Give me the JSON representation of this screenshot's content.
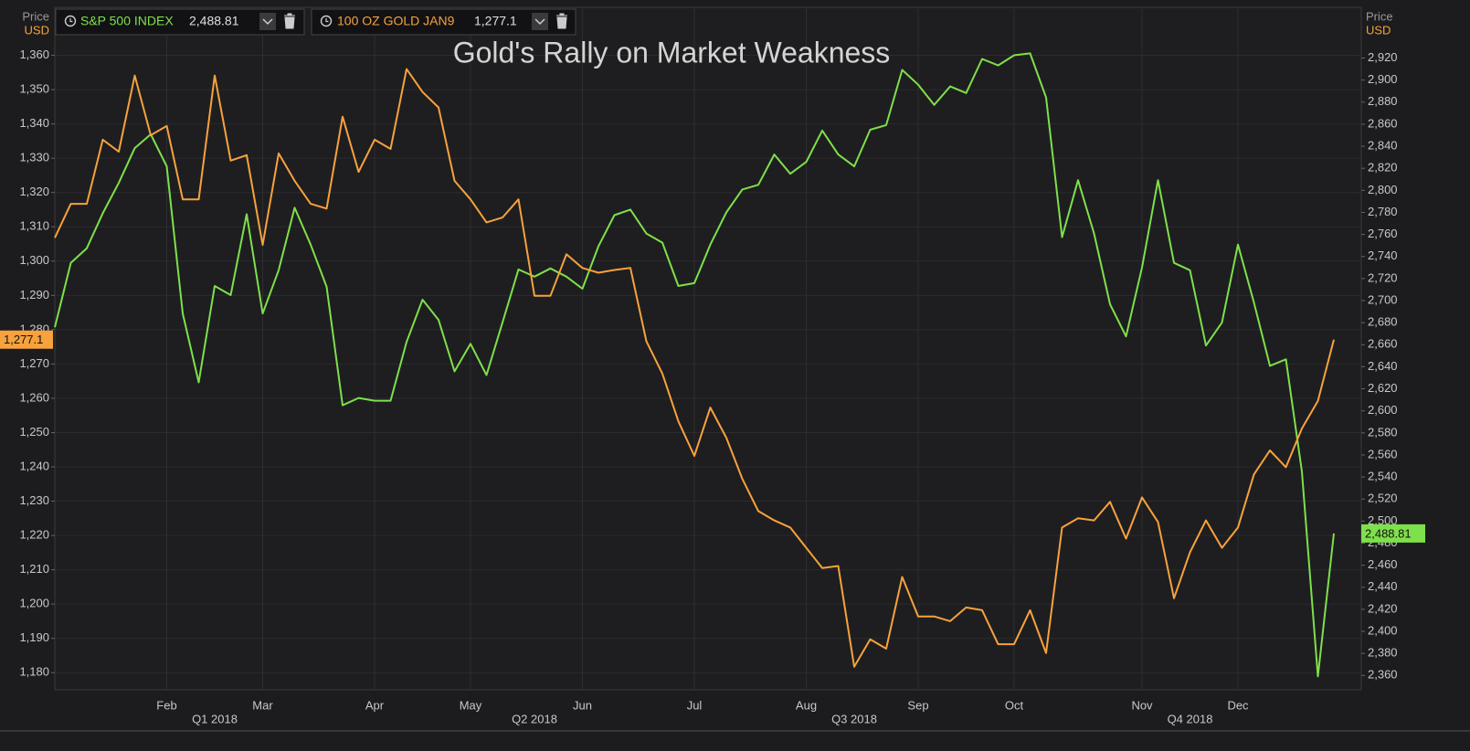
{
  "chart_data": {
    "type": "line",
    "title": "Gold's Rally on Market Weakness",
    "ylabel": "Price",
    "yunit": "USD",
    "y2label": "Price",
    "y2unit": "USD",
    "categories": [
      null,
      null,
      null,
      null,
      null,
      null,
      null,
      "Feb",
      null,
      null,
      null,
      null,
      null,
      "Mar",
      null,
      null,
      null,
      null,
      null,
      null,
      "Apr",
      null,
      null,
      null,
      null,
      null,
      "May",
      null,
      null,
      null,
      null,
      null,
      null,
      "Jun",
      null,
      null,
      null,
      null,
      null,
      null,
      "Jul",
      null,
      null,
      null,
      null,
      null,
      null,
      "Aug",
      null,
      null,
      null,
      null,
      null,
      null,
      "Sep",
      null,
      null,
      null,
      null,
      null,
      "Oct",
      null,
      null,
      null,
      null,
      null,
      null,
      null,
      "Nov",
      null,
      null,
      null,
      null,
      null,
      "Dec",
      null,
      null,
      null,
      null,
      null,
      null
    ],
    "quarter_categories": [
      null,
      null,
      null,
      null,
      null,
      null,
      null,
      null,
      null,
      null,
      "Q1 2018",
      null,
      null,
      null,
      null,
      null,
      null,
      null,
      null,
      null,
      null,
      null,
      null,
      null,
      null,
      null,
      null,
      null,
      null,
      null,
      "Q2 2018",
      null,
      null,
      null,
      null,
      null,
      null,
      null,
      null,
      null,
      null,
      null,
      null,
      null,
      null,
      null,
      null,
      null,
      null,
      null,
      "Q3 2018",
      null,
      null,
      null,
      null,
      null,
      null,
      null,
      null,
      null,
      null,
      null,
      null,
      null,
      null,
      null,
      null,
      null,
      null,
      null,
      null,
      "Q4 2018",
      null,
      null,
      null,
      null,
      null,
      null,
      null,
      null,
      null
    ],
    "series": [
      {
        "name": "S&P 500 INDEX",
        "color": "#7ee04a",
        "axis": "y2",
        "last_label": "2,488.81",
        "values": [
          2675.8,
          2734.2,
          2747.5,
          2779.2,
          2806.7,
          2838.3,
          2850.8,
          2821.7,
          2688.3,
          2625.8,
          2713.3,
          2705.0,
          2778.3,
          2688.3,
          2727.5,
          2784.2,
          2750.8,
          2712.5,
          2605.0,
          2611.7,
          2609.2,
          2609.2,
          2662.5,
          2700.8,
          2682.5,
          2635.8,
          2660.8,
          2632.5,
          2680.0,
          2728.3,
          2721.7,
          2729.2,
          2721.7,
          2710.8,
          2749.2,
          2777.5,
          2782.5,
          2760.8,
          2752.5,
          2713.3,
          2715.8,
          2750.8,
          2780.0,
          2800.8,
          2805.0,
          2832.5,
          2815.0,
          2825.8,
          2854.2,
          2832.5,
          2821.7,
          2855.0,
          2859.2,
          2909.2,
          2895.8,
          2877.5,
          2894.2,
          2888.3,
          2919.2,
          2913.3,
          2922.5,
          2924.2,
          2884.2,
          2757.5,
          2809.2,
          2760.8,
          2696.7,
          2667.5,
          2730.0,
          2809.2,
          2734.2,
          2727.5,
          2659.2,
          2680.0,
          2750.8,
          2698.3,
          2640.8,
          2646.7,
          2545.0,
          2359.2,
          2488.81
        ]
      },
      {
        "name": "100 OZ GOLD JAN9",
        "color": "#f7a23c",
        "last_label": "1,277.1",
        "values": [
          1306.8,
          1316.7,
          1316.7,
          1335.4,
          1331.9,
          1354.1,
          1336.7,
          1339.4,
          1318.0,
          1318.0,
          1354.1,
          1329.3,
          1330.9,
          1304.7,
          1331.4,
          1323.4,
          1316.7,
          1315.3,
          1342.1,
          1326.0,
          1335.4,
          1332.7,
          1356.0,
          1349.3,
          1344.8,
          1323.4,
          1318.0,
          1311.3,
          1312.7,
          1318.0,
          1289.9,
          1289.9,
          1302.0,
          1298.0,
          1296.6,
          1297.4,
          1298.0,
          1276.6,
          1267.2,
          1253.3,
          1243.2,
          1257.3,
          1248.5,
          1236.5,
          1227.1,
          1224.4,
          1222.3,
          1216.4,
          1210.5,
          1211.1,
          1181.7,
          1189.7,
          1187.0,
          1207.9,
          1196.4,
          1196.4,
          1195.0,
          1199.0,
          1198.2,
          1188.3,
          1188.3,
          1198.2,
          1185.7,
          1222.3,
          1225.0,
          1224.4,
          1229.8,
          1219.1,
          1231.1,
          1223.9,
          1201.7,
          1215.1,
          1224.4,
          1216.4,
          1222.3,
          1237.8,
          1244.8,
          1239.9,
          1251.2,
          1259.2,
          1277.1
        ]
      }
    ],
    "ylim": [
      1175,
      1374
    ],
    "yticks": [
      {
        "value": 1180,
        "label": "1,180"
      },
      {
        "value": 1190,
        "label": "1,190"
      },
      {
        "value": 1200,
        "label": "1,200"
      },
      {
        "value": 1210,
        "label": "1,210"
      },
      {
        "value": 1220,
        "label": "1,220"
      },
      {
        "value": 1230,
        "label": "1,230"
      },
      {
        "value": 1240,
        "label": "1,240"
      },
      {
        "value": 1250,
        "label": "1,250"
      },
      {
        "value": 1260,
        "label": "1,260"
      },
      {
        "value": 1270,
        "label": "1,270"
      },
      {
        "value": 1280,
        "label": "1,280"
      },
      {
        "value": 1290,
        "label": "1,290"
      },
      {
        "value": 1300,
        "label": "1,300"
      },
      {
        "value": 1310,
        "label": "1,310"
      },
      {
        "value": 1320,
        "label": "1,320"
      },
      {
        "value": 1330,
        "label": "1,330"
      },
      {
        "value": 1340,
        "label": "1,340"
      },
      {
        "value": 1350,
        "label": "1,350"
      },
      {
        "value": 1360,
        "label": "1,360"
      }
    ],
    "y2lim": [
      2347,
      2966
    ],
    "y2ticks": [
      {
        "value": 2360,
        "label": "2,360"
      },
      {
        "value": 2380,
        "label": "2,380"
      },
      {
        "value": 2400,
        "label": "2,400"
      },
      {
        "value": 2420,
        "label": "2,420"
      },
      {
        "value": 2440,
        "label": "2,440"
      },
      {
        "value": 2460,
        "label": "2,460"
      },
      {
        "value": 2480,
        "label": "2,480"
      },
      {
        "value": 2500,
        "label": "2,500"
      },
      {
        "value": 2520,
        "label": "2,520"
      },
      {
        "value": 2540,
        "label": "2,540"
      },
      {
        "value": 2560,
        "label": "2,560"
      },
      {
        "value": 2580,
        "label": "2,580"
      },
      {
        "value": 2600,
        "label": "2,600"
      },
      {
        "value": 2620,
        "label": "2,620"
      },
      {
        "value": 2640,
        "label": "2,640"
      },
      {
        "value": 2660,
        "label": "2,660"
      },
      {
        "value": 2680,
        "label": "2,680"
      },
      {
        "value": 2700,
        "label": "2,700"
      },
      {
        "value": 2720,
        "label": "2,720"
      },
      {
        "value": 2740,
        "label": "2,740"
      },
      {
        "value": 2760,
        "label": "2,760"
      },
      {
        "value": 2780,
        "label": "2,780"
      },
      {
        "value": 2800,
        "label": "2,800"
      },
      {
        "value": 2820,
        "label": "2,820"
      },
      {
        "value": 2840,
        "label": "2,840"
      },
      {
        "value": 2860,
        "label": "2,860"
      },
      {
        "value": 2880,
        "label": "2,880"
      },
      {
        "value": 2900,
        "label": "2,900"
      },
      {
        "value": 2920,
        "label": "2,920"
      }
    ],
    "grid": true
  }
}
